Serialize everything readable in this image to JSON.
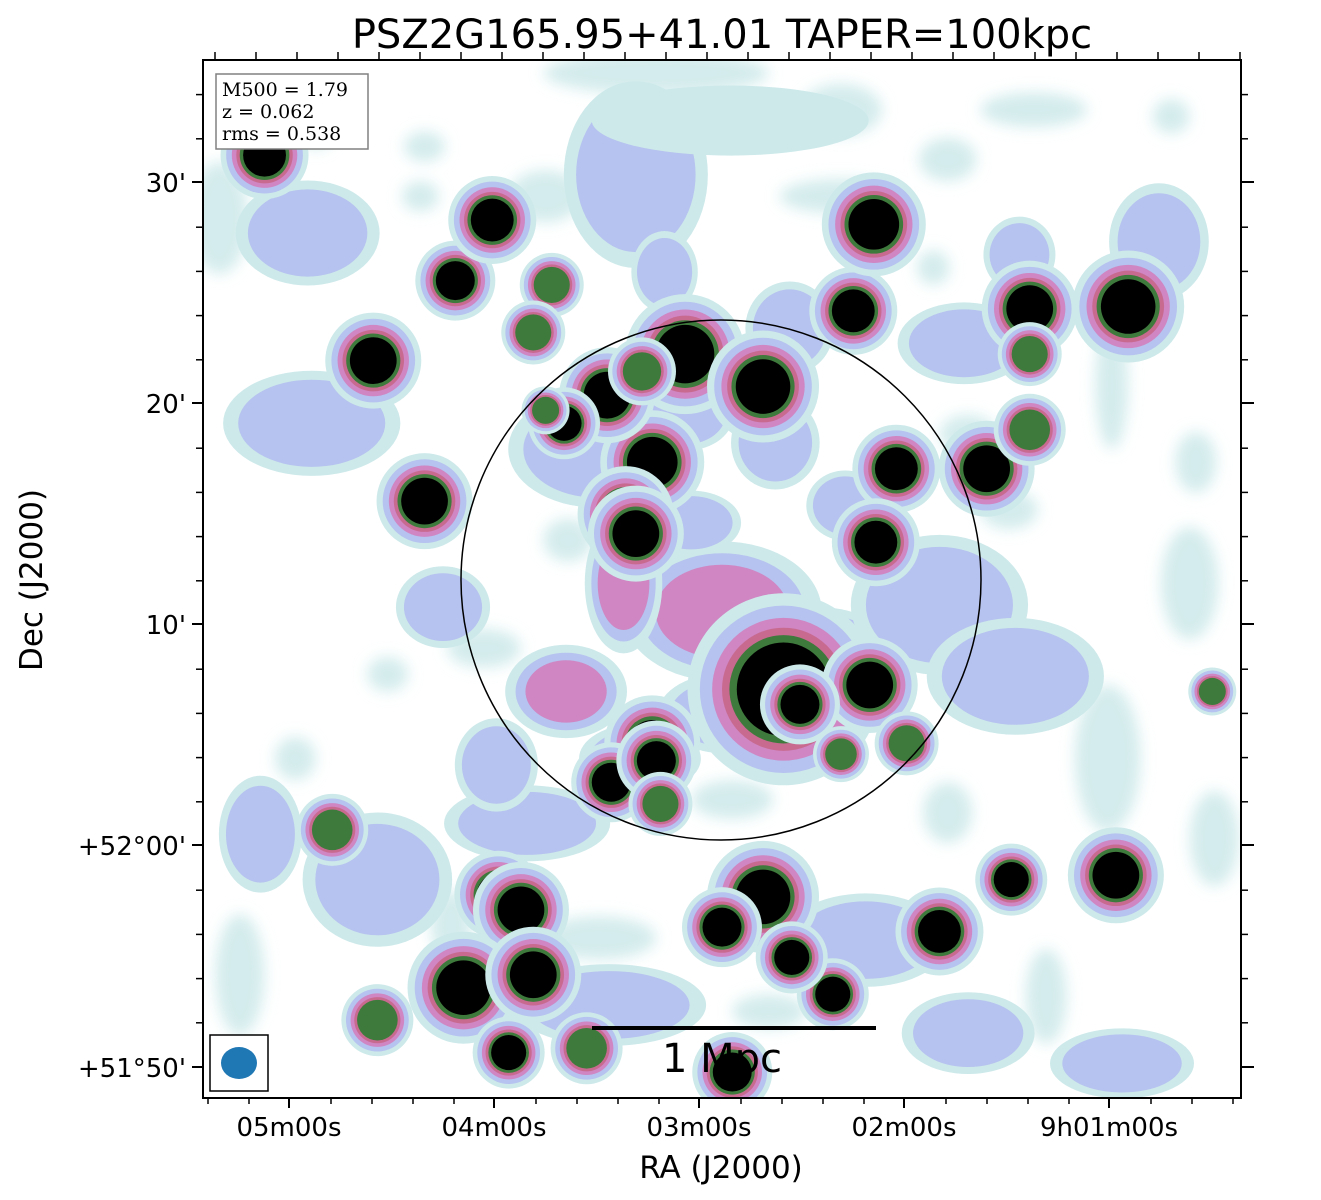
{
  "chart_data": {
    "type": "heatmap",
    "title": "PSZ2G165.95+41.01 TAPER=100kpc",
    "xlabel": "RA (J2000)",
    "ylabel": "Dec (J2000)",
    "x_ticks": [
      "05m00s",
      "04m00s",
      "03m00s",
      "02m00s",
      "9h01m00s"
    ],
    "y_ticks": [
      "+51°50'",
      "+52°00'",
      "10'",
      "20'",
      "30'"
    ],
    "xlim_arcmin_offset": [
      -25.3,
      25.3
    ],
    "ylim_arcmin": [
      -1.2,
      46.8
    ],
    "info_box": [
      "M500 = 1.79",
      "z = 0.062",
      "rms = 0.538"
    ],
    "scalebar_label": "1 Mpc",
    "colormap": [
      "#ffffff",
      "#cde9ea",
      "#b6c2ef",
      "#cf86c2",
      "#c86a90",
      "#3e7a3c",
      "#000000"
    ],
    "beam_color": "#1f77b4",
    "r500_circle": {
      "center_offset_arcmin": [
        -0.1,
        22.3
      ],
      "radius_arcmin": 11.75
    },
    "sources": [
      {
        "x": -1.8,
        "y": 33.2,
        "r": 1.5,
        "a": 1.0
      },
      {
        "x": 2.0,
        "y": 31.7,
        "r": 1.4,
        "a": 1.0
      },
      {
        "x": -3.4,
        "y": 28.2,
        "r": 1.3,
        "a": 1.0
      },
      {
        "x": -4.7,
        "y": 25.8,
        "r": 1.2,
        "a": 1.0
      },
      {
        "x": 8.5,
        "y": 27.9,
        "r": 1.1,
        "a": 1.0
      },
      {
        "x": 7.5,
        "y": 24.5,
        "r": 1.1,
        "a": 1.0
      },
      {
        "x": -13.0,
        "y": 36.6,
        "r": 1.0,
        "a": 1.0
      },
      {
        "x": 19.8,
        "y": 35.4,
        "r": 1.4,
        "a": 1.0
      },
      {
        "x": 15.0,
        "y": 35.3,
        "r": 1.2,
        "a": 1.0
      },
      {
        "x": 12.9,
        "y": 27.9,
        "r": 1.2,
        "a": 0.85
      },
      {
        "x": -17.0,
        "y": 32.9,
        "r": 1.2,
        "a": 1.0
      },
      {
        "x": -5.6,
        "y": 31.3,
        "r": 1.2,
        "a": 1.0
      },
      {
        "x": -7.7,
        "y": 30.0,
        "r": 0.9,
        "a": 0.9
      },
      {
        "x": 3.0,
        "y": 17.7,
        "r": 2.4,
        "a": 1.0
      },
      {
        "x": 7.2,
        "y": 17.9,
        "r": 1.2,
        "a": 1.0
      },
      {
        "x": -3.4,
        "y": 15.2,
        "r": 1.2,
        "a": 1.0
      },
      {
        "x": -4.2,
        "y": 24.9,
        "r": 1.2,
        "a": 1.0
      },
      {
        "x": 6.4,
        "y": 35.2,
        "r": 1.1,
        "a": 1.0
      },
      {
        "x": 7.4,
        "y": 39.2,
        "r": 1.3,
        "a": 1.0
      },
      {
        "x": -14.5,
        "y": 26.4,
        "r": 1.2,
        "a": 1.0
      },
      {
        "x": -5.4,
        "y": 13.4,
        "r": 1.0,
        "a": 1.0
      },
      {
        "x": -10.9,
        "y": 8.2,
        "r": 1.1,
        "a": 0.9
      },
      {
        "x": -22.3,
        "y": 42.4,
        "r": 1.1,
        "a": 0.85
      },
      {
        "x": -11.2,
        "y": 39.4,
        "r": 1.1,
        "a": 0.85
      },
      {
        "x": -3.9,
        "y": 32.4,
        "r": 0.85,
        "a": 0.75
      },
      {
        "x": -8.3,
        "y": 36.4,
        "r": 0.8,
        "a": 0.75
      },
      {
        "x": -9.2,
        "y": 34.2,
        "r": 0.8,
        "a": 0.75
      },
      {
        "x": 15.0,
        "y": 33.2,
        "r": 0.8,
        "a": 0.75
      },
      {
        "x": 15.0,
        "y": 29.7,
        "r": 0.9,
        "a": 0.8
      },
      {
        "x": 23.9,
        "y": 17.6,
        "r": 0.6,
        "a": 0.6
      },
      {
        "x": -8.6,
        "y": 30.6,
        "r": 0.6,
        "a": 0.6
      },
      {
        "x": 3.8,
        "y": 17.0,
        "r": 1.0,
        "a": 0.9
      },
      {
        "x": -3.2,
        "y": 14.4,
        "r": 1.0,
        "a": 0.9
      },
      {
        "x": 19.2,
        "y": 9.1,
        "r": 1.2,
        "a": 1.0
      },
      {
        "x": 10.6,
        "y": 6.5,
        "r": 1.1,
        "a": 1.0
      },
      {
        "x": -9.8,
        "y": 7.5,
        "r": 1.2,
        "a": 1.0
      },
      {
        "x": -19.0,
        "y": 11.2,
        "r": 0.9,
        "a": 0.8
      },
      {
        "x": 2.0,
        "y": 8.1,
        "r": 1.4,
        "a": 1.0
      },
      {
        "x": 14.1,
        "y": 8.9,
        "r": 0.9,
        "a": 0.9
      },
      {
        "x": -12.6,
        "y": 3.9,
        "r": 1.4,
        "a": 1.0
      },
      {
        "x": -9.2,
        "y": 4.5,
        "r": 1.2,
        "a": 1.0
      },
      {
        "x": -6.6,
        "y": 1.1,
        "r": 0.9,
        "a": 0.8
      },
      {
        "x": 0.0,
        "y": 6.7,
        "r": 1.0,
        "a": 0.9
      },
      {
        "x": 5.4,
        "y": 3.6,
        "r": 0.9,
        "a": 0.9
      },
      {
        "x": 0.5,
        "y": 0.0,
        "r": 1.0,
        "a": 0.9
      },
      {
        "x": 3.4,
        "y": 5.3,
        "r": 0.9,
        "a": 0.9
      },
      {
        "x": -10.4,
        "y": 0.9,
        "r": 0.9,
        "a": 0.85
      },
      {
        "x": -16.8,
        "y": 2.4,
        "r": 0.9,
        "a": 0.8
      },
      {
        "x": 5.8,
        "y": 14.7,
        "r": 0.7,
        "a": 0.7
      },
      {
        "x": -3.0,
        "y": 12.4,
        "r": 0.8,
        "a": 0.7
      },
      {
        "x": 9.0,
        "y": 15.2,
        "r": 0.8,
        "a": 0.7
      }
    ],
    "diffuse": [
      {
        "x": 0.0,
        "y": 21.3,
        "rx": 3.6,
        "ry": 2.4,
        "a": 0.8
      },
      {
        "x": -4.8,
        "y": 22.6,
        "rx": 1.4,
        "ry": 2.4,
        "a": 0.72
      },
      {
        "x": 4.8,
        "y": 19.6,
        "rx": 2.5,
        "ry": 1.4,
        "a": 0.72
      },
      {
        "x": -7.6,
        "y": 17.6,
        "rx": 2.2,
        "ry": 1.6,
        "a": 0.65
      },
      {
        "x": 0.4,
        "y": 16.6,
        "rx": 2.6,
        "ry": 1.4,
        "a": 0.62
      },
      {
        "x": 10.6,
        "y": 21.6,
        "rx": 3.2,
        "ry": 2.4,
        "a": 0.62
      },
      {
        "x": 14.3,
        "y": 18.3,
        "rx": 3.2,
        "ry": 2.0,
        "a": 0.62
      },
      {
        "x": 2.6,
        "y": 29.1,
        "rx": 1.6,
        "ry": 1.6,
        "a": 0.62
      },
      {
        "x": -6.1,
        "y": 28.8,
        "rx": 3.2,
        "ry": 2.0,
        "a": 0.55
      },
      {
        "x": -13.6,
        "y": 21.5,
        "rx": 1.7,
        "ry": 1.4,
        "a": 0.55
      },
      {
        "x": -1.7,
        "y": 30.5,
        "rx": 1.7,
        "ry": 1.3,
        "a": 0.55
      },
      {
        "x": -5.5,
        "y": 3.1,
        "rx": 3.5,
        "ry": 1.4,
        "a": 0.6
      },
      {
        "x": 7.0,
        "y": 6.1,
        "rx": 3.0,
        "ry": 1.6,
        "a": 0.55
      },
      {
        "x": -16.8,
        "y": 8.9,
        "rx": 2.7,
        "ry": 2.3,
        "a": 0.5
      },
      {
        "x": -9.5,
        "y": 11.5,
        "rx": 3.0,
        "ry": 1.3,
        "a": 0.5
      },
      {
        "x": -22.5,
        "y": 11.0,
        "rx": 1.5,
        "ry": 2.0,
        "a": 0.42
      },
      {
        "x": 19.5,
        "y": 0.4,
        "rx": 2.6,
        "ry": 1.2,
        "a": 0.45
      },
      {
        "x": -4.2,
        "y": 41.5,
        "rx": 2.6,
        "ry": 3.2,
        "a": 0.5
      },
      {
        "x": -20.0,
        "y": 30.0,
        "rx": 3.2,
        "ry": 1.8,
        "a": 0.45
      },
      {
        "x": -2.8,
        "y": 37.0,
        "rx": 1.2,
        "ry": 1.4,
        "a": 0.5
      },
      {
        "x": 14.5,
        "y": 37.8,
        "rx": 1.3,
        "ry": 1.3,
        "a": 0.48
      },
      {
        "x": -11.0,
        "y": 14.2,
        "rx": 1.5,
        "ry": 1.6,
        "a": 0.48
      },
      {
        "x": 11.8,
        "y": 33.7,
        "rx": 2.4,
        "ry": 1.4,
        "a": 0.45
      },
      {
        "x": -1.5,
        "y": 25.4,
        "rx": 1.8,
        "ry": 1.1,
        "a": 0.45
      },
      {
        "x": 3.3,
        "y": 34.4,
        "rx": 1.6,
        "ry": 1.6,
        "a": 0.45
      },
      {
        "x": 21.3,
        "y": 38.4,
        "rx": 1.8,
        "ry": 2.0,
        "a": 0.42
      },
      {
        "x": -20.2,
        "y": 38.8,
        "rx": 2.6,
        "ry": 1.8,
        "a": 0.42
      },
      {
        "x": 0.4,
        "y": 44.0,
        "rx": 5.0,
        "ry": 1.2,
        "a": 0.36
      },
      {
        "x": 12.0,
        "y": 1.8,
        "rx": 2.4,
        "ry": 1.4,
        "a": 0.45
      },
      {
        "x": -4.0,
        "y": 14.5,
        "rx": 2.2,
        "ry": 1.2,
        "a": 0.45
      },
      {
        "x": 6.0,
        "y": 26.2,
        "rx": 1.4,
        "ry": 1.2,
        "a": 0.45
      }
    ],
    "faint": [
      {
        "x": -3.2,
        "y": 46.2,
        "rx": 5.5,
        "ry": 1.0
      },
      {
        "x": 5.8,
        "y": 44.5,
        "rx": 2.0,
        "ry": 1.2
      },
      {
        "x": 5.8,
        "y": 40.5,
        "rx": 3.0,
        "ry": 0.8
      },
      {
        "x": -19.8,
        "y": 43.8,
        "rx": 1.0,
        "ry": 1.1
      },
      {
        "x": -14.5,
        "y": 42.8,
        "rx": 1.0,
        "ry": 0.7
      },
      {
        "x": 21.9,
        "y": 44.2,
        "rx": 0.9,
        "ry": 0.8
      },
      {
        "x": -24.5,
        "y": 39.5,
        "rx": 1.4,
        "ry": 2.6
      },
      {
        "x": 19.0,
        "y": 31.8,
        "rx": 0.8,
        "ry": 3.0
      },
      {
        "x": 23.1,
        "y": 28.2,
        "rx": 1.0,
        "ry": 1.4
      },
      {
        "x": 15.2,
        "y": 44.5,
        "rx": 2.6,
        "ry": 0.8
      },
      {
        "x": 11.0,
        "y": 42.2,
        "rx": 1.4,
        "ry": 1.0
      },
      {
        "x": 22.8,
        "y": 22.6,
        "rx": 1.4,
        "ry": 2.6
      },
      {
        "x": 18.8,
        "y": 14.5,
        "rx": 1.6,
        "ry": 3.4
      },
      {
        "x": -6.0,
        "y": 6.2,
        "rx": 2.8,
        "ry": 1.0
      },
      {
        "x": -13.2,
        "y": 6.8,
        "rx": 1.0,
        "ry": 1.6
      },
      {
        "x": -23.5,
        "y": 4.5,
        "rx": 1.2,
        "ry": 2.8
      },
      {
        "x": -20.8,
        "y": 14.5,
        "rx": 1.0,
        "ry": 1.0
      },
      {
        "x": 2.3,
        "y": 2.8,
        "rx": 1.8,
        "ry": 0.8
      },
      {
        "x": 15.8,
        "y": 3.5,
        "rx": 1.0,
        "ry": 2.2
      },
      {
        "x": 24.0,
        "y": 10.8,
        "rx": 1.2,
        "ry": 2.2
      },
      {
        "x": -7.5,
        "y": 24.6,
        "rx": 1.2,
        "ry": 1.0
      },
      {
        "x": 14.0,
        "y": 26.0,
        "rx": 1.4,
        "ry": 0.9
      },
      {
        "x": -11.6,
        "y": 19.6,
        "rx": 1.8,
        "ry": 0.9
      },
      {
        "x": 0.5,
        "y": 12.6,
        "rx": 2.0,
        "ry": 0.9
      },
      {
        "x": 11.0,
        "y": 12.0,
        "rx": 1.2,
        "ry": 1.4
      },
      {
        "x": -14.7,
        "y": 40.5,
        "rx": 0.9,
        "ry": 0.7
      },
      {
        "x": 10.3,
        "y": 37.2,
        "rx": 0.8,
        "ry": 0.8
      },
      {
        "x": 12.0,
        "y": 29.5,
        "rx": 1.4,
        "ry": 0.9
      },
      {
        "x": -16.3,
        "y": 18.4,
        "rx": 1.0,
        "ry": 0.8
      },
      {
        "x": -8.6,
        "y": 40.5,
        "rx": 1.8,
        "ry": 1.2
      }
    ]
  }
}
